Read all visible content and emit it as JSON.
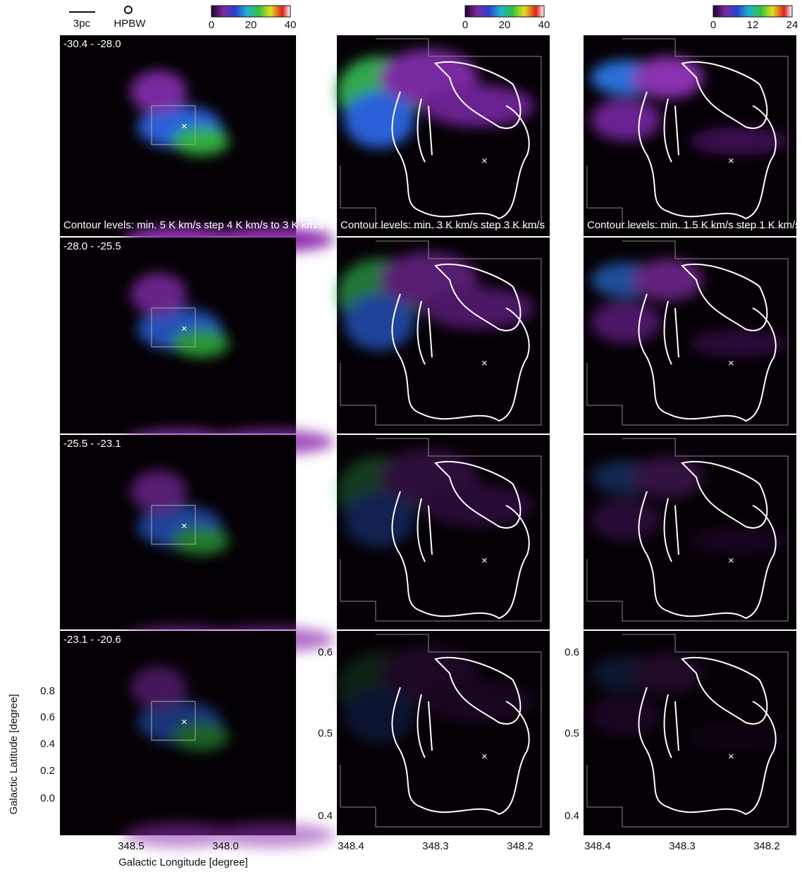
{
  "header": {
    "scale_bar": "3pc",
    "beam": "HPBW"
  },
  "colorbars": [
    {
      "ticks": [
        "0",
        "20",
        "40"
      ]
    },
    {
      "ticks": [
        "0",
        "20",
        "40"
      ]
    },
    {
      "ticks": [
        "0",
        "12",
        "24"
      ]
    }
  ],
  "rows": [
    {
      "velocity": "-30.4 -  -28.0"
    },
    {
      "velocity": "-28.0 -  -25.5"
    },
    {
      "velocity": "-25.5 -  -23.1"
    },
    {
      "velocity": "-23.1 -  -20.6"
    }
  ],
  "contour_notes": [
    "Contour levels: min. 5 K km/s step 4 K km/s to 3 K km/s",
    "Contour levels: min. 3 K km/s step 3 K km/s",
    "Contour levels: min. 1.5 K km/s step 1 K km/s"
  ],
  "axes": {
    "left": {
      "x_label": "Galactic Longitude [degree]",
      "y_label": "Galactic Latitude [degree]",
      "xticks": [
        "348.5",
        "348.0"
      ],
      "yticks": [
        "0.8",
        "0.6",
        "0.4",
        "0.2",
        "0.0"
      ]
    },
    "zoom": {
      "xticks": [
        "348.4",
        "348.3",
        "348.2"
      ],
      "yticks": [
        "0.6",
        "0.5",
        "0.4"
      ]
    }
  }
}
